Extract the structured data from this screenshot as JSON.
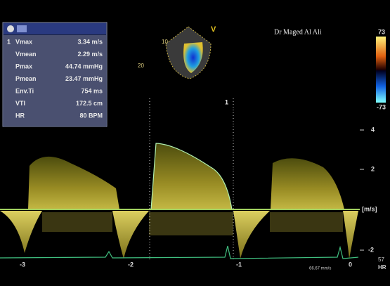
{
  "measurements": {
    "index": "1",
    "rows": [
      {
        "label": "Vmax",
        "value": "3.34 m/s"
      },
      {
        "label": "Vmean",
        "value": "2.29 m/s"
      },
      {
        "label": "Pmax",
        "value": "44.74 mmHg"
      },
      {
        "label": "Pmean",
        "value": "23.47 mmHg"
      },
      {
        "label": "Env.Ti",
        "value": "754 ms"
      },
      {
        "label": "VTI",
        "value": "172.5 cm"
      },
      {
        "label": "HR",
        "value": "80 BPM"
      }
    ]
  },
  "header": {
    "operator": "Dr Maged Al Ali"
  },
  "sector": {
    "depth_marks": [
      "10",
      "20"
    ],
    "label": "V"
  },
  "cursor_label": "1",
  "color_scale": {
    "top": "73",
    "bottom": "-73"
  },
  "velocity_scale": {
    "ticks": [
      "4",
      "2",
      "-2"
    ],
    "unit": "[m/s]"
  },
  "time_scale": {
    "ticks": [
      "-3",
      "-2",
      "-1",
      "0"
    ]
  },
  "sweep_speed": "66.67 mm/s",
  "heart_rate": {
    "value": "57",
    "label": "HR"
  }
}
